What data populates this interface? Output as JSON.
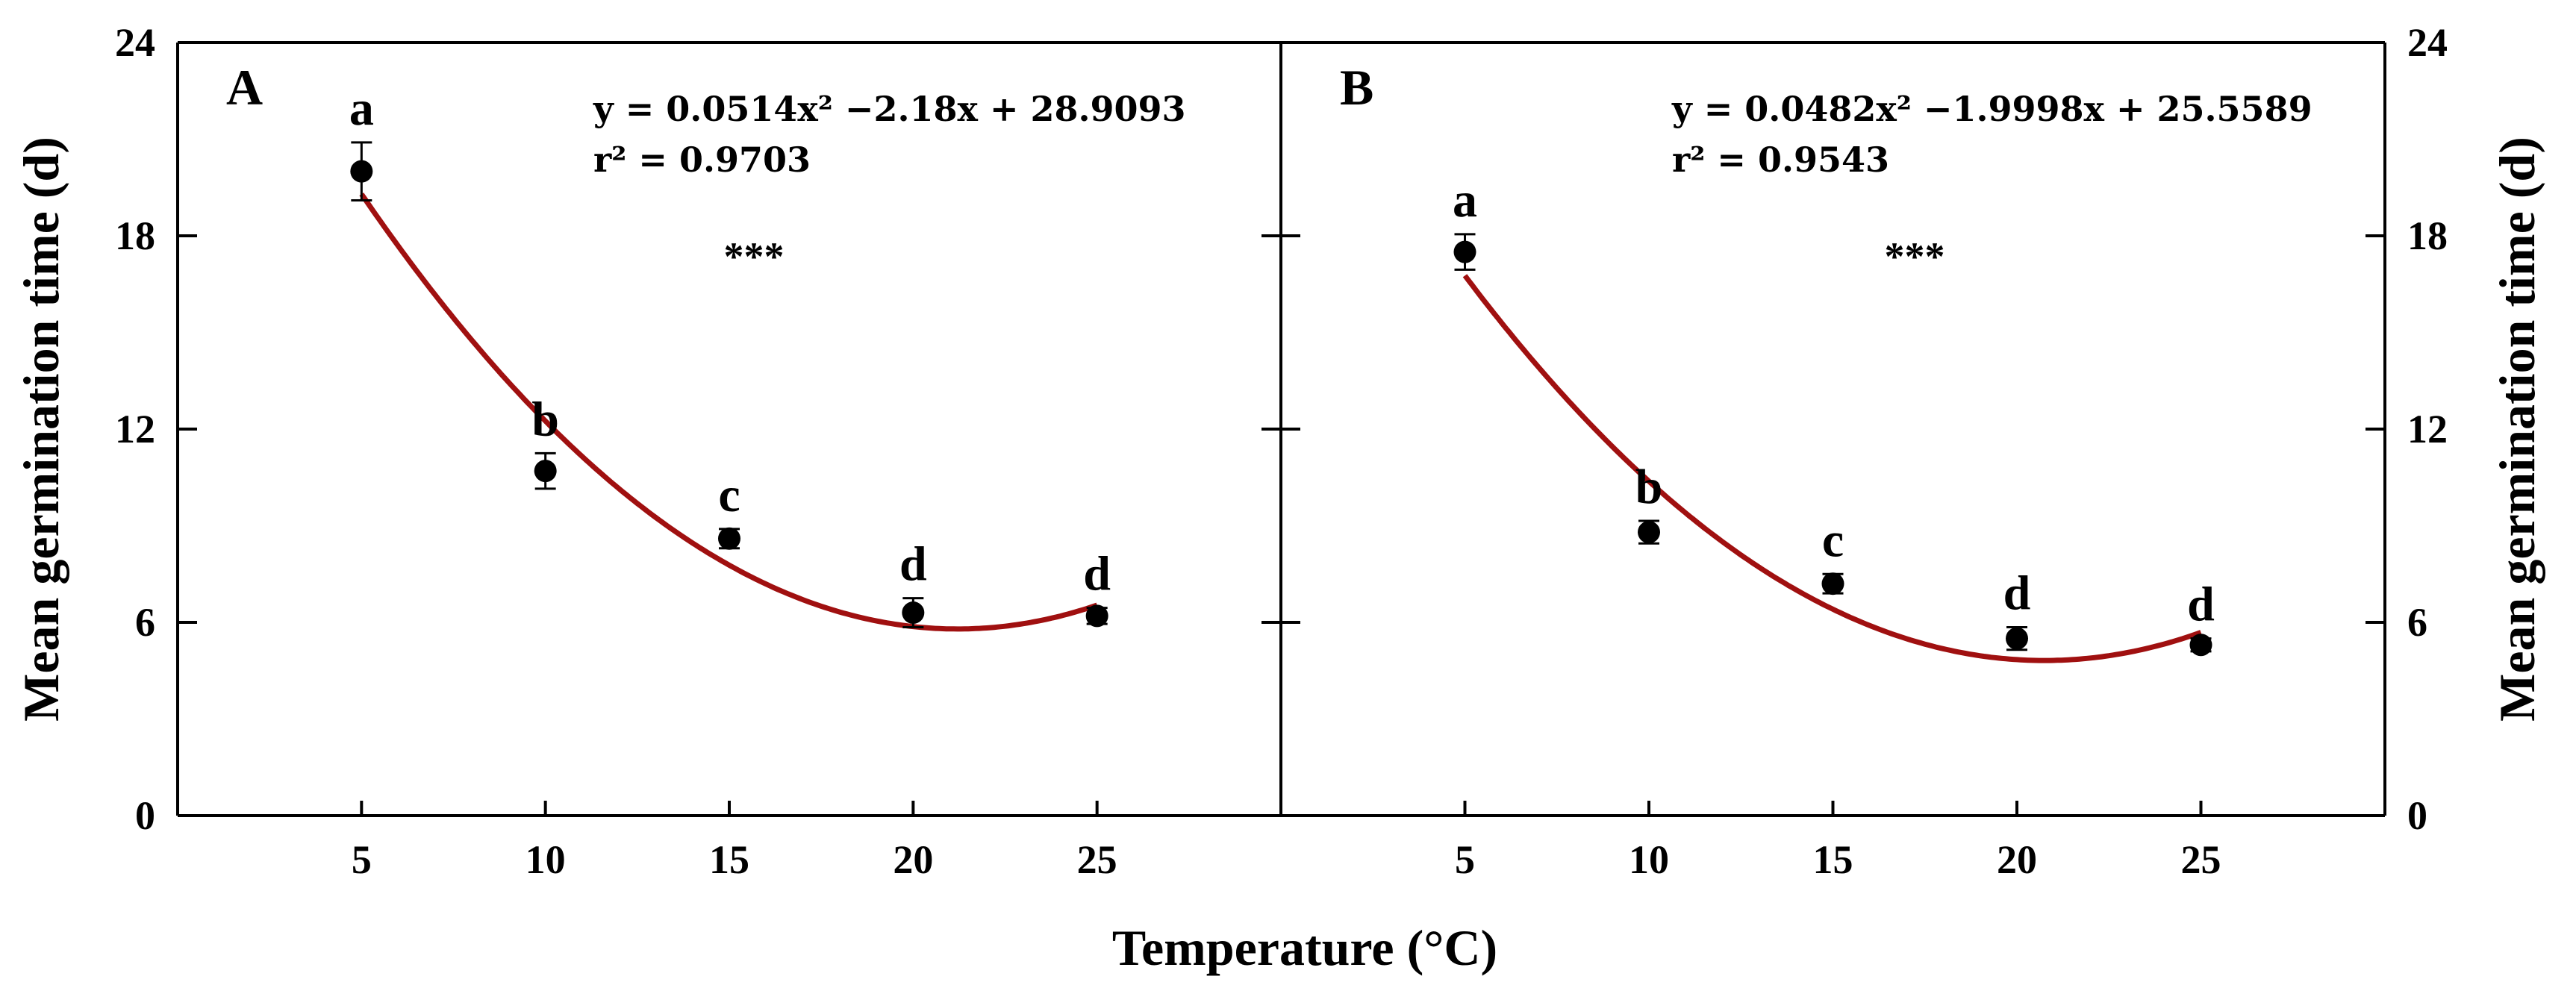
{
  "chart_data": [
    {
      "type": "scatter",
      "panel_label": "A",
      "x": [
        5,
        10,
        15,
        20,
        25
      ],
      "y": [
        20.0,
        10.7,
        8.6,
        6.3,
        6.2
      ],
      "y_error": [
        0.9,
        0.55,
        0.3,
        0.45,
        0.25
      ],
      "significance_letters": [
        "a",
        "b",
        "c",
        "d",
        "d"
      ],
      "fit": {
        "type": "quadratic",
        "a": 0.0514,
        "b": -2.18,
        "c": 28.9093,
        "color": "#a01010"
      },
      "equation_text": "y  = 0.0514x² −2.18x + 28.9093",
      "r2_text": "r² = 0.9703",
      "significance_text": "***",
      "xticks": [
        5,
        10,
        15,
        20,
        25
      ],
      "yticks": [
        0,
        6,
        12,
        18,
        24
      ],
      "xlim": [
        0,
        30
      ],
      "ylim": [
        0,
        24
      ],
      "y_axis_side": "left"
    },
    {
      "type": "scatter",
      "panel_label": "B",
      "x": [
        5,
        10,
        15,
        20,
        25
      ],
      "y": [
        17.5,
        8.8,
        7.2,
        5.5,
        5.3
      ],
      "y_error": [
        0.55,
        0.35,
        0.3,
        0.35,
        0.2
      ],
      "significance_letters": [
        "a",
        "b",
        "c",
        "d",
        "d"
      ],
      "fit": {
        "type": "quadratic",
        "a": 0.0482,
        "b": -1.9998,
        "c": 25.5589,
        "color": "#a01010"
      },
      "equation_text": "y  = 0.0482x² −1.9998x + 25.5589",
      "r2_text": "r² = 0.9543",
      "significance_text": "***",
      "xticks": [
        5,
        10,
        15,
        20,
        25
      ],
      "yticks": [
        0,
        6,
        12,
        18,
        24
      ],
      "xlim": [
        0,
        30
      ],
      "ylim": [
        0,
        24
      ],
      "y_axis_side": "right"
    }
  ],
  "ylabel": "Mean germination time (d)",
  "xlabel": "Temperature (°C)"
}
